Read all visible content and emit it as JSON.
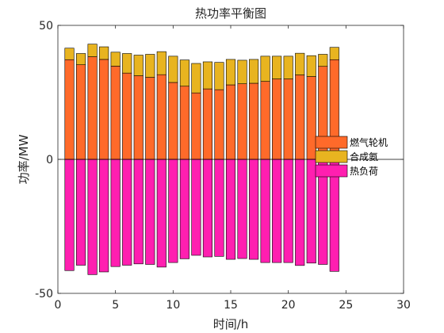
{
  "chart_data": {
    "type": "bar",
    "title": "热功率平衡图",
    "xlabel": "时间/h",
    "ylabel": "功率/MW",
    "xlim": [
      0,
      30
    ],
    "ylim": [
      -50,
      50
    ],
    "xticks": [
      0,
      5,
      10,
      15,
      20,
      25,
      30
    ],
    "yticks": [
      -50,
      0,
      50
    ],
    "x": [
      1,
      2,
      3,
      4,
      5,
      6,
      7,
      8,
      9,
      10,
      11,
      12,
      13,
      14,
      15,
      16,
      17,
      18,
      19,
      20,
      21,
      22,
      23,
      24
    ],
    "stacked": true,
    "legend_position": "right",
    "series": [
      {
        "name": "燃气轮机",
        "color": "#FF6A2A",
        "values": [
          37.2,
          35.3,
          38.3,
          37.3,
          34.8,
          32.2,
          31.2,
          30.6,
          31.6,
          28.7,
          27.3,
          24.8,
          26.3,
          26.0,
          27.8,
          28.2,
          28.4,
          29.1,
          30.0,
          30.0,
          31.5,
          30.9,
          34.7,
          37.2
        ]
      },
      {
        "name": "合成氨",
        "color": "#E8B420",
        "values": [
          4.3,
          4.2,
          4.7,
          4.7,
          5.2,
          7.3,
          7.7,
          8.6,
          8.6,
          9.8,
          9.8,
          11.0,
          10.1,
          10.2,
          9.5,
          8.8,
          8.9,
          9.4,
          8.5,
          8.5,
          8.1,
          7.8,
          4.5,
          4.6
        ]
      },
      {
        "name": "热负荷",
        "color": "#FF1FB0",
        "values": [
          -41.5,
          -39.5,
          -43.0,
          -42.0,
          -40.0,
          -39.5,
          -39.0,
          -39.2,
          -40.2,
          -38.5,
          -37.1,
          -35.8,
          -36.4,
          -36.2,
          -37.3,
          -37.0,
          -37.3,
          -38.5,
          -38.5,
          -38.5,
          -39.6,
          -38.7,
          -39.2,
          -41.8
        ]
      }
    ]
  }
}
